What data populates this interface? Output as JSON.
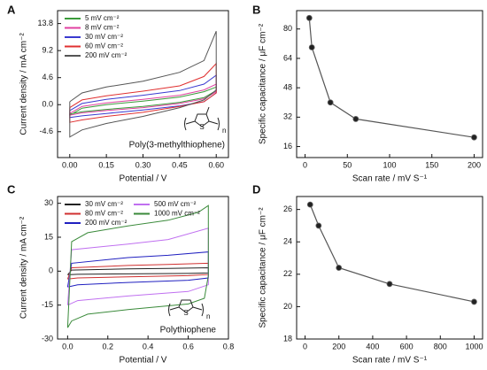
{
  "chart_data": [
    {
      "type": "line",
      "panel_label": "A",
      "xlabel": "Potential / V",
      "ylabel": "Current density / mA cm⁻²",
      "annotation": "Poly(3-methylthiophene)",
      "structure_atom": "S",
      "structure_label": "n",
      "xlim": [
        -0.05,
        0.65
      ],
      "xticks": [
        {
          "value": 0,
          "label": "0.00"
        },
        {
          "value": 0.15,
          "label": "0.15"
        },
        {
          "value": 0.3,
          "label": "0.30"
        },
        {
          "value": 0.45,
          "label": "0.45"
        },
        {
          "value": 0.6,
          "label": "0.60"
        }
      ],
      "ylim": [
        -9,
        16
      ],
      "yticks": [
        -4.6,
        {
          "value": 0,
          "label": "0.0"
        },
        4.6,
        9.2,
        13.8
      ],
      "series": [
        {
          "name": "5 mV cm⁻²",
          "color": "#3a9a3a",
          "x": [
            0,
            0.05,
            0.15,
            0.3,
            0.45,
            0.55,
            0.6,
            0.6,
            0.55,
            0.45,
            0.3,
            0.15,
            0.05,
            0,
            0
          ],
          "values": [
            -1.8,
            -0.6,
            0,
            0.6,
            1.3,
            2.2,
            3,
            2.4,
            1.2,
            0.4,
            -0.3,
            -0.8,
            -1.2,
            -1.6,
            -1.8
          ]
        },
        {
          "name": "8 mV cm⁻²",
          "color": "#e040a0",
          "x": [
            0,
            0.05,
            0.15,
            0.3,
            0.45,
            0.55,
            0.6,
            0.6,
            0.55,
            0.45,
            0.3,
            0.15,
            0.05,
            0,
            0
          ],
          "values": [
            -1.5,
            -0.3,
            0.3,
            0.9,
            1.6,
            2.5,
            3.5,
            2.2,
            1,
            0.2,
            -0.5,
            -1,
            -1.4,
            -1.8,
            -1.5
          ]
        },
        {
          "name": "30 mV cm⁻²",
          "color": "#3a3ad0",
          "x": [
            0,
            0.05,
            0.15,
            0.3,
            0.45,
            0.55,
            0.6,
            0.6,
            0.55,
            0.45,
            0.3,
            0.15,
            0.05,
            0,
            0
          ],
          "values": [
            -1,
            0.2,
            0.9,
            1.6,
            2.4,
            3.5,
            5,
            2,
            0.5,
            -0.2,
            -0.9,
            -1.5,
            -1.9,
            -2.2,
            -1
          ]
        },
        {
          "name": "60 mV cm⁻²",
          "color": "#e03030",
          "x": [
            0,
            0.05,
            0.15,
            0.3,
            0.45,
            0.55,
            0.6,
            0.6,
            0.55,
            0.45,
            0.3,
            0.15,
            0.05,
            0,
            0
          ],
          "values": [
            -0.5,
            0.8,
            1.5,
            2.3,
            3.2,
            4.8,
            7,
            2,
            0.5,
            -0.3,
            -1.3,
            -2,
            -2.6,
            -3,
            -0.5
          ]
        },
        {
          "name": "200 mV cm⁻²",
          "color": "#555555",
          "x": [
            0,
            0.05,
            0.15,
            0.3,
            0.45,
            0.55,
            0.6,
            0.6,
            0.55,
            0.45,
            0.3,
            0.15,
            0.05,
            0,
            0
          ],
          "values": [
            0.5,
            2,
            3,
            4,
            5.5,
            7.5,
            12.5,
            2.5,
            0.8,
            -0.5,
            -2,
            -3.2,
            -4.3,
            -5.5,
            0.5
          ]
        }
      ]
    },
    {
      "type": "line",
      "markers": true,
      "panel_label": "B",
      "xlabel": "Scan rate / mV S⁻¹",
      "ylabel": "Specific capacitance / μF cm⁻²",
      "color": "#555555",
      "x": [
        5,
        8,
        30,
        60,
        200
      ],
      "values": [
        86,
        70,
        40,
        31,
        21
      ],
      "xlim": [
        -10,
        210
      ],
      "xticks": [
        0,
        50,
        100,
        150,
        200
      ],
      "ylim": [
        10,
        90
      ],
      "yticks": [
        16,
        32,
        48,
        64,
        80
      ]
    },
    {
      "type": "line",
      "panel_label": "C",
      "xlabel": "Potential / V",
      "ylabel": "Current density / mA cm⁻²",
      "annotation": "Polythiophene",
      "structure_atom": "S",
      "structure_label": "n",
      "xlim": [
        -0.05,
        0.8
      ],
      "xticks": [
        {
          "value": 0,
          "label": "0.0"
        },
        0.2,
        0.4,
        0.6,
        0.8
      ],
      "ylim": [
        -30,
        33
      ],
      "yticks": [
        -30,
        -15,
        0,
        15,
        30
      ],
      "series": [
        {
          "name": "30 mV cm⁻²",
          "color": "#222222",
          "x": [
            0,
            0.02,
            0.3,
            0.5,
            0.7,
            0.7,
            0.6,
            0.3,
            0.05,
            0,
            0
          ],
          "values": [
            -1.6,
            0.5,
            1,
            1.2,
            1.5,
            -0.8,
            -1,
            -1.2,
            -1.4,
            -1.6,
            -1.6
          ]
        },
        {
          "name": "80 mV cm⁻²",
          "color": "#d03030",
          "x": [
            0,
            0.02,
            0.3,
            0.5,
            0.7,
            0.7,
            0.6,
            0.3,
            0.05,
            0,
            0
          ],
          "values": [
            -3.5,
            1.5,
            2.5,
            3,
            3.5,
            -1.5,
            -2,
            -2.5,
            -3,
            -3.5,
            -3.5
          ]
        },
        {
          "name": "200 mV cm⁻²",
          "color": "#2020c0",
          "x": [
            0,
            0.02,
            0.3,
            0.5,
            0.7,
            0.7,
            0.6,
            0.3,
            0.05,
            0,
            0
          ],
          "values": [
            -7,
            3.5,
            6,
            7,
            8.5,
            -3,
            -4,
            -5,
            -6,
            -7,
            -7
          ]
        },
        {
          "name": "500 mV cm⁻²",
          "color": "#c070f0",
          "x": [
            0,
            0.02,
            0.3,
            0.5,
            0.7,
            0.7,
            0.6,
            0.3,
            0.05,
            0,
            0
          ],
          "values": [
            -15,
            9.5,
            12,
            14,
            19,
            -6,
            -9,
            -11,
            -13,
            -15,
            -15
          ]
        },
        {
          "name": "1000 mV cm⁻²",
          "color": "#3a8a3a",
          "x": [
            0,
            0.02,
            0.1,
            0.3,
            0.5,
            0.65,
            0.7,
            0.7,
            0.68,
            0.6,
            0.3,
            0.1,
            0.02,
            0,
            0
          ],
          "values": [
            -25,
            13,
            17,
            20,
            22.5,
            26,
            29,
            -2,
            -12,
            -14.5,
            -17,
            -19,
            -22,
            -25,
            -25
          ]
        }
      ]
    },
    {
      "type": "line",
      "markers": true,
      "panel_label": "D",
      "xlabel": "Scan rate / mV S⁻¹",
      "ylabel": "Specific capacitance / μF cm⁻²",
      "color": "#555555",
      "x": [
        30,
        80,
        200,
        500,
        1000
      ],
      "values": [
        26.3,
        25,
        22.4,
        21.4,
        20.3
      ],
      "xlim": [
        -50,
        1050
      ],
      "xticks": [
        0,
        200,
        400,
        600,
        800,
        1000
      ],
      "ylim": [
        18,
        26.8
      ],
      "yticks": [
        18,
        20,
        22,
        24,
        26
      ]
    }
  ]
}
